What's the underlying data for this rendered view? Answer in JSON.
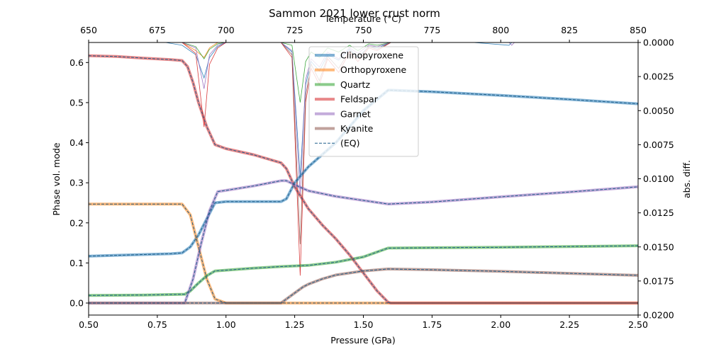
{
  "chart_data": {
    "type": "line",
    "title": "Sammon 2021 lower crust norm",
    "xlabel": "Pressure (GPa)",
    "ylabel": "Phase vol. mode",
    "x2label": "Temperature (°C)",
    "y2label": "abs. diff.",
    "xlim": [
      0.5,
      2.5
    ],
    "ylim": [
      -0.03,
      0.65
    ],
    "x2lim": [
      650,
      850
    ],
    "y2lim": [
      0.02,
      0.0
    ],
    "xticks": [
      "0.50",
      "0.75",
      "1.00",
      "1.25",
      "1.50",
      "1.75",
      "2.00",
      "2.25",
      "2.50"
    ],
    "yticks": [
      "0.0",
      "0.1",
      "0.2",
      "0.3",
      "0.4",
      "0.5",
      "0.6"
    ],
    "x2ticks": [
      "650",
      "675",
      "700",
      "725",
      "750",
      "775",
      "800",
      "825",
      "850"
    ],
    "y2ticks": [
      "0.0000",
      "0.0025",
      "0.0050",
      "0.0075",
      "0.0100",
      "0.0125",
      "0.0150",
      "0.0175",
      "0.0200"
    ],
    "grid": false,
    "legend_position": "upper-center",
    "series": [
      {
        "name": "Clinopyroxene",
        "color": "#1f77b4",
        "x": [
          0.5,
          0.6,
          0.7,
          0.8,
          0.84,
          0.87,
          0.9,
          0.93,
          0.96,
          1.0,
          1.1,
          1.2,
          1.22,
          1.25,
          1.3,
          1.4,
          1.5,
          1.59,
          1.6,
          1.75,
          2.0,
          2.25,
          2.5
        ],
        "y": [
          0.117,
          0.119,
          0.121,
          0.123,
          0.125,
          0.14,
          0.17,
          0.21,
          0.25,
          0.253,
          0.253,
          0.253,
          0.26,
          0.3,
          0.34,
          0.4,
          0.48,
          0.531,
          0.531,
          0.527,
          0.518,
          0.508,
          0.497
        ]
      },
      {
        "name": "Orthopyroxene",
        "color": "#ff7f0e",
        "x": [
          0.5,
          0.6,
          0.7,
          0.8,
          0.84,
          0.87,
          0.9,
          0.93,
          0.96,
          1.0,
          1.5,
          2.0,
          2.5
        ],
        "y": [
          0.247,
          0.247,
          0.247,
          0.247,
          0.247,
          0.22,
          0.14,
          0.06,
          0.01,
          0.0,
          0.0,
          0.0,
          0.0
        ]
      },
      {
        "name": "Quartz",
        "color": "#2ca02c",
        "x": [
          0.5,
          0.7,
          0.85,
          0.87,
          0.9,
          0.93,
          0.96,
          1.0,
          1.1,
          1.2,
          1.3,
          1.4,
          1.5,
          1.59,
          1.75,
          2.0,
          2.25,
          2.5
        ],
        "y": [
          0.019,
          0.02,
          0.022,
          0.03,
          0.05,
          0.068,
          0.08,
          0.082,
          0.087,
          0.091,
          0.094,
          0.102,
          0.115,
          0.137,
          0.138,
          0.139,
          0.141,
          0.143
        ]
      },
      {
        "name": "Feldspar",
        "color": "#d62728",
        "x": [
          0.5,
          0.6,
          0.7,
          0.8,
          0.84,
          0.86,
          0.88,
          0.9,
          0.93,
          0.96,
          1.0,
          1.1,
          1.2,
          1.22,
          1.25,
          1.3,
          1.35,
          1.4,
          1.45,
          1.5,
          1.55,
          1.59,
          1.6,
          2.0,
          2.5
        ],
        "y": [
          0.617,
          0.615,
          0.611,
          0.607,
          0.605,
          0.59,
          0.55,
          0.5,
          0.44,
          0.395,
          0.385,
          0.37,
          0.35,
          0.335,
          0.29,
          0.235,
          0.195,
          0.16,
          0.12,
          0.075,
          0.03,
          0.002,
          0.0,
          0.0,
          0.0
        ]
      },
      {
        "name": "Garnet",
        "color": "#9467bd",
        "x": [
          0.5,
          0.7,
          0.85,
          0.88,
          0.91,
          0.94,
          0.97,
          1.0,
          1.1,
          1.2,
          1.22,
          1.25,
          1.3,
          1.4,
          1.5,
          1.59,
          1.75,
          2.0,
          2.25,
          2.5
        ],
        "y": [
          0.0,
          0.0,
          0.0,
          0.06,
          0.15,
          0.23,
          0.278,
          0.281,
          0.292,
          0.305,
          0.305,
          0.295,
          0.28,
          0.266,
          0.256,
          0.247,
          0.252,
          0.265,
          0.277,
          0.29
        ]
      },
      {
        "name": "Kyanite",
        "color": "#8c564b",
        "x": [
          0.5,
          0.8,
          1.0,
          1.2,
          1.22,
          1.25,
          1.28,
          1.3,
          1.35,
          1.4,
          1.5,
          1.59,
          1.75,
          2.0,
          2.25,
          2.5
        ],
        "y": [
          0.0,
          0.0,
          0.0,
          0.0,
          0.01,
          0.025,
          0.04,
          0.047,
          0.06,
          0.07,
          0.08,
          0.085,
          0.083,
          0.079,
          0.074,
          0.069
        ]
      }
    ],
    "eq_label": "(EQ)",
    "diff_series": [
      {
        "color": "#1f77b4",
        "x": [
          650,
          678,
          684,
          689,
          692,
          694,
          697,
          700,
          720,
          724,
          727,
          729,
          731,
          734,
          737,
          741,
          745,
          748,
          752,
          755,
          760,
          790,
          803,
          804,
          820,
          850
        ],
        "y": [
          0.0,
          0.0,
          0.0002,
          0.0009,
          0.0026,
          0.0011,
          0.0003,
          0.0,
          0.0,
          0.0007,
          0.0098,
          0.0031,
          0.0014,
          0.0021,
          0.0009,
          0.0013,
          0.0005,
          0.0011,
          0.0003,
          0.0004,
          0.0,
          0.0,
          0.0002,
          0.0,
          0.0,
          0.0
        ]
      },
      {
        "color": "#ff7f0e",
        "x": [
          650,
          684,
          689,
          692,
          694,
          697,
          850
        ],
        "y": [
          0.0,
          0.0,
          0.0006,
          0.0011,
          0.0004,
          0.0,
          0.0
        ]
      },
      {
        "color": "#2ca02c",
        "x": [
          650,
          684,
          689,
          692,
          694,
          697,
          700,
          720,
          724,
          727,
          729,
          731,
          734,
          737,
          741,
          745,
          748,
          752,
          755,
          760,
          850
        ],
        "y": [
          0.0,
          0.0,
          0.0003,
          0.0012,
          0.0005,
          0.0001,
          0.0,
          0.0,
          0.0002,
          0.0044,
          0.0014,
          0.0007,
          0.0011,
          0.0004,
          0.0007,
          0.0002,
          0.0006,
          0.0001,
          0.0002,
          0.0,
          0.0
        ]
      },
      {
        "color": "#d62728",
        "x": [
          650,
          684,
          689,
          692,
          694,
          697,
          700,
          720,
          724,
          727,
          729,
          731,
          734,
          737,
          741,
          745,
          748,
          752,
          755,
          760,
          850
        ],
        "y": [
          0.0,
          0.0,
          0.0008,
          0.0062,
          0.0016,
          0.0004,
          0.0,
          0.0,
          0.0011,
          0.0171,
          0.0044,
          0.0019,
          0.0031,
          0.0012,
          0.0022,
          0.0007,
          0.0014,
          0.0004,
          0.0006,
          0.0,
          0.0
        ]
      },
      {
        "color": "#9467bd",
        "x": [
          650,
          684,
          689,
          692,
          694,
          697,
          700,
          720,
          724,
          727,
          729,
          731,
          734,
          737,
          741,
          745,
          748,
          752,
          755,
          760,
          803,
          804,
          805,
          850
        ],
        "y": [
          0.0,
          0.0,
          0.0004,
          0.0034,
          0.0009,
          0.0002,
          0.0,
          0.0,
          0.0006,
          0.0112,
          0.0027,
          0.0012,
          0.0018,
          0.0007,
          0.0012,
          0.0004,
          0.0008,
          0.0002,
          0.0003,
          0.0,
          0.0,
          0.0002,
          0.0,
          0.0
        ]
      },
      {
        "color": "#8c564b",
        "x": [
          650,
          720,
          724,
          727,
          729,
          731,
          734,
          737,
          741,
          745,
          748,
          752,
          755,
          760,
          850
        ],
        "y": [
          0.0,
          0.0,
          0.0009,
          0.0148,
          0.0039,
          0.0016,
          0.0028,
          0.001,
          0.0019,
          0.0006,
          0.0012,
          0.0003,
          0.0005,
          0.0,
          0.0
        ]
      }
    ]
  }
}
